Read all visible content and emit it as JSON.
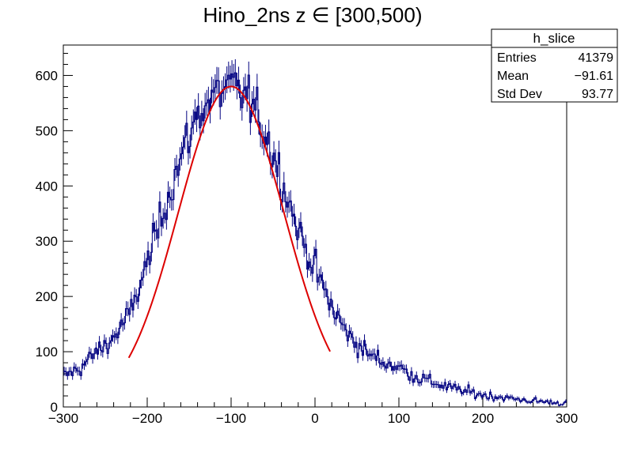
{
  "chart_data": {
    "type": "histogram",
    "title": "Hino_2ns z  ∈ [300,500)",
    "xlabel": "",
    "ylabel": "",
    "xlim": [
      -300,
      300
    ],
    "ylim": [
      0,
      655
    ],
    "x_ticks": [
      -300,
      -200,
      -100,
      0,
      100,
      200,
      300
    ],
    "x_tick_labels": [
      "−300",
      "−200",
      "−100",
      "0",
      "100",
      "200",
      "300"
    ],
    "y_ticks": [
      0,
      100,
      200,
      300,
      400,
      500,
      600
    ],
    "y_tick_labels": [
      "0",
      "100",
      "200",
      "300",
      "400",
      "500",
      "600"
    ],
    "bin_width": 2,
    "histogram_color": "#000080",
    "fit_color": "#dd0000",
    "fit": {
      "function": "gaus",
      "range": [
        -222,
        18
      ],
      "constant": 580,
      "mean": -100,
      "sigma": 63
    },
    "envelope": {
      "description": "approximate bin contents (events per bin) at x",
      "x": [
        -300,
        -280,
        -260,
        -240,
        -220,
        -200,
        -180,
        -160,
        -140,
        -120,
        -100,
        -80,
        -60,
        -40,
        -20,
        0,
        20,
        40,
        60,
        80,
        100,
        120,
        140,
        160,
        180,
        200,
        220,
        240,
        260,
        280,
        300
      ],
      "y": [
        55,
        70,
        100,
        125,
        170,
        260,
        360,
        450,
        530,
        565,
        580,
        560,
        500,
        415,
        320,
        250,
        180,
        130,
        100,
        82,
        72,
        55,
        45,
        35,
        28,
        22,
        18,
        14,
        11,
        9,
        6
      ]
    },
    "legend": {
      "name": "h_slice",
      "rows": [
        {
          "label": "Entries",
          "value": "41379"
        },
        {
          "label": "Mean",
          "value": "−91.61"
        },
        {
          "label": "Std Dev",
          "value": "93.77"
        }
      ],
      "position": "top-right"
    }
  }
}
